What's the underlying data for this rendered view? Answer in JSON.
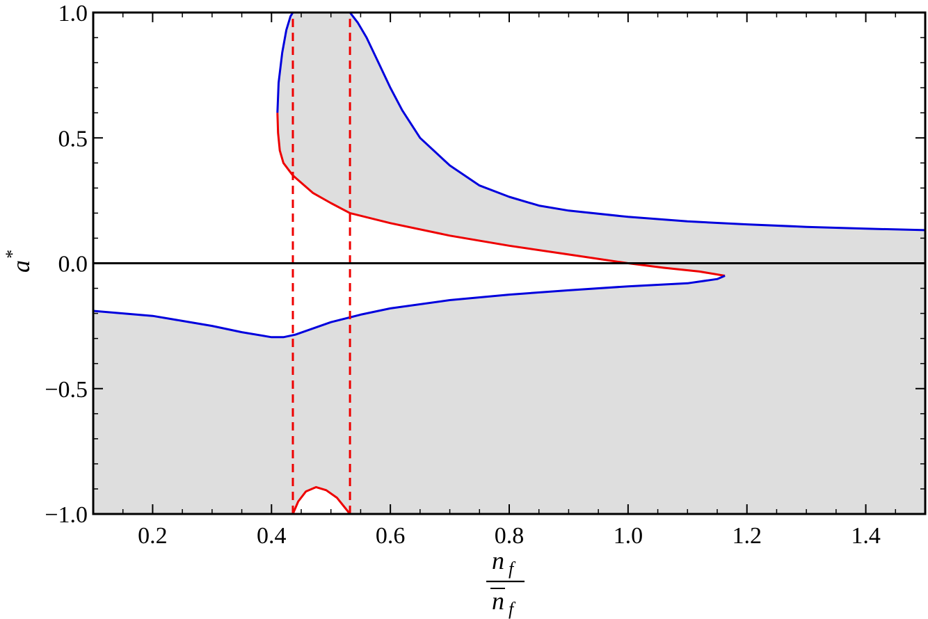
{
  "chart_data": {
    "type": "line",
    "title": "",
    "xlabel": "n_f / n̄_f",
    "xlabel_parts": {
      "numerator": "n",
      "numerator_sub": "f",
      "denominator": "n",
      "denominator_sub": "f"
    },
    "ylabel": "a*",
    "ylabel_parts": {
      "base": "a",
      "sup": "*"
    },
    "xlim": [
      0.1,
      1.5
    ],
    "ylim": [
      -1.0,
      1.0
    ],
    "x_ticks": [
      0.2,
      0.4,
      0.6,
      0.8,
      1.0,
      1.2,
      1.4
    ],
    "x_tick_labels": [
      "0.2",
      "0.4",
      "0.6",
      "0.8",
      "1.0",
      "1.2",
      "1.4"
    ],
    "y_ticks": [
      -1.0,
      -0.5,
      0.0,
      0.5,
      1.0
    ],
    "y_tick_labels": [
      "−1.0",
      "−0.5",
      "0.0",
      "0.5",
      "1.0"
    ],
    "grid": false,
    "legend": "none",
    "colors": {
      "blue": "#0000dd",
      "red": "#ee0000",
      "shade": "#dedede",
      "axis": "#000000"
    },
    "series": [
      {
        "color": "blue",
        "style": "solid",
        "points": [
          [
            0.41,
            0.6
          ],
          [
            0.412,
            0.72
          ],
          [
            0.418,
            0.84
          ],
          [
            0.425,
            0.93
          ],
          [
            0.432,
            0.985
          ],
          [
            0.436,
            1.0
          ]
        ]
      },
      {
        "color": "red",
        "style": "solid",
        "points": [
          [
            0.41,
            0.6
          ],
          [
            0.411,
            0.52
          ],
          [
            0.414,
            0.45
          ],
          [
            0.42,
            0.4
          ],
          [
            0.436,
            0.35
          ],
          [
            0.47,
            0.28
          ],
          [
            0.5,
            0.24
          ],
          [
            0.532,
            0.2
          ],
          [
            0.6,
            0.16
          ],
          [
            0.7,
            0.11
          ],
          [
            0.8,
            0.07
          ],
          [
            0.9,
            0.035
          ],
          [
            1.0,
            0.0
          ],
          [
            1.06,
            -0.018
          ],
          [
            1.12,
            -0.033
          ],
          [
            1.163,
            -0.05
          ]
        ]
      },
      {
        "color": "blue",
        "style": "solid",
        "points": [
          [
            0.532,
            1.0
          ],
          [
            0.545,
            0.96
          ],
          [
            0.56,
            0.9
          ],
          [
            0.58,
            0.8
          ],
          [
            0.6,
            0.7
          ],
          [
            0.62,
            0.61
          ],
          [
            0.65,
            0.5
          ],
          [
            0.7,
            0.39
          ],
          [
            0.75,
            0.31
          ],
          [
            0.8,
            0.265
          ],
          [
            0.85,
            0.23
          ],
          [
            0.9,
            0.21
          ],
          [
            1.0,
            0.185
          ],
          [
            1.1,
            0.167
          ],
          [
            1.2,
            0.155
          ],
          [
            1.3,
            0.145
          ],
          [
            1.4,
            0.138
          ],
          [
            1.5,
            0.132
          ]
        ]
      },
      {
        "color": "blue",
        "style": "solid",
        "points": [
          [
            1.163,
            -0.05
          ],
          [
            1.15,
            -0.063
          ],
          [
            1.1,
            -0.08
          ],
          [
            1.0,
            -0.092
          ],
          [
            0.9,
            -0.108
          ],
          [
            0.8,
            -0.125
          ],
          [
            0.7,
            -0.147
          ],
          [
            0.6,
            -0.18
          ],
          [
            0.55,
            -0.205
          ],
          [
            0.5,
            -0.235
          ],
          [
            0.47,
            -0.26
          ],
          [
            0.44,
            -0.285
          ],
          [
            0.42,
            -0.295
          ],
          [
            0.4,
            -0.295
          ],
          [
            0.35,
            -0.275
          ],
          [
            0.3,
            -0.25
          ],
          [
            0.25,
            -0.23
          ],
          [
            0.2,
            -0.21
          ],
          [
            0.15,
            -0.2
          ],
          [
            0.1,
            -0.19
          ]
        ]
      },
      {
        "color": "red",
        "style": "solid",
        "points": [
          [
            0.436,
            -1.0
          ],
          [
            0.445,
            -0.95
          ],
          [
            0.458,
            -0.91
          ],
          [
            0.475,
            -0.893
          ],
          [
            0.492,
            -0.905
          ],
          [
            0.51,
            -0.935
          ],
          [
            0.532,
            -1.0
          ]
        ]
      },
      {
        "color": "red",
        "style": "dashed",
        "points": [
          [
            0.436,
            -1.0
          ],
          [
            0.436,
            1.0
          ]
        ]
      },
      {
        "color": "red",
        "style": "dashed",
        "points": [
          [
            0.532,
            -1.0
          ],
          [
            0.532,
            1.0
          ]
        ]
      },
      {
        "color": "black",
        "style": "solid",
        "points": [
          [
            0.1,
            0.0
          ],
          [
            1.5,
            0.0
          ]
        ]
      }
    ],
    "shaded_regions": [
      {
        "color": "shade",
        "points": [
          [
            0.436,
            1.0
          ],
          [
            0.532,
            1.0
          ],
          [
            0.545,
            0.96
          ],
          [
            0.56,
            0.9
          ],
          [
            0.58,
            0.8
          ],
          [
            0.6,
            0.7
          ],
          [
            0.62,
            0.61
          ],
          [
            0.65,
            0.5
          ],
          [
            0.7,
            0.39
          ],
          [
            0.75,
            0.31
          ],
          [
            0.8,
            0.265
          ],
          [
            0.85,
            0.23
          ],
          [
            0.9,
            0.21
          ],
          [
            1.0,
            0.185
          ],
          [
            1.1,
            0.167
          ],
          [
            1.2,
            0.155
          ],
          [
            1.3,
            0.145
          ],
          [
            1.4,
            0.138
          ],
          [
            1.5,
            0.132
          ],
          [
            1.5,
            -1.0
          ],
          [
            0.532,
            -1.0
          ],
          [
            0.51,
            -0.935
          ],
          [
            0.492,
            -0.905
          ],
          [
            0.475,
            -0.893
          ],
          [
            0.458,
            -0.91
          ],
          [
            0.445,
            -0.95
          ],
          [
            0.436,
            -1.0
          ],
          [
            0.1,
            -1.0
          ],
          [
            0.1,
            -0.19
          ],
          [
            0.15,
            -0.2
          ],
          [
            0.2,
            -0.21
          ],
          [
            0.25,
            -0.23
          ],
          [
            0.3,
            -0.25
          ],
          [
            0.35,
            -0.275
          ],
          [
            0.4,
            -0.295
          ],
          [
            0.42,
            -0.295
          ],
          [
            0.44,
            -0.285
          ],
          [
            0.47,
            -0.26
          ],
          [
            0.5,
            -0.235
          ],
          [
            0.55,
            -0.205
          ],
          [
            0.6,
            -0.18
          ],
          [
            0.7,
            -0.147
          ],
          [
            0.8,
            -0.125
          ],
          [
            0.9,
            -0.108
          ],
          [
            1.0,
            -0.092
          ],
          [
            1.1,
            -0.08
          ],
          [
            1.15,
            -0.063
          ],
          [
            1.163,
            -0.05
          ],
          [
            1.12,
            -0.033
          ],
          [
            1.06,
            -0.018
          ],
          [
            1.0,
            0.0
          ],
          [
            0.9,
            0.035
          ],
          [
            0.8,
            0.07
          ],
          [
            0.7,
            0.11
          ],
          [
            0.6,
            0.16
          ],
          [
            0.532,
            0.2
          ],
          [
            0.5,
            0.24
          ],
          [
            0.47,
            0.28
          ],
          [
            0.436,
            0.35
          ],
          [
            0.42,
            0.4
          ],
          [
            0.414,
            0.45
          ],
          [
            0.411,
            0.52
          ],
          [
            0.41,
            0.6
          ],
          [
            0.412,
            0.72
          ],
          [
            0.418,
            0.84
          ],
          [
            0.425,
            0.93
          ],
          [
            0.432,
            0.985
          ]
        ]
      }
    ]
  }
}
